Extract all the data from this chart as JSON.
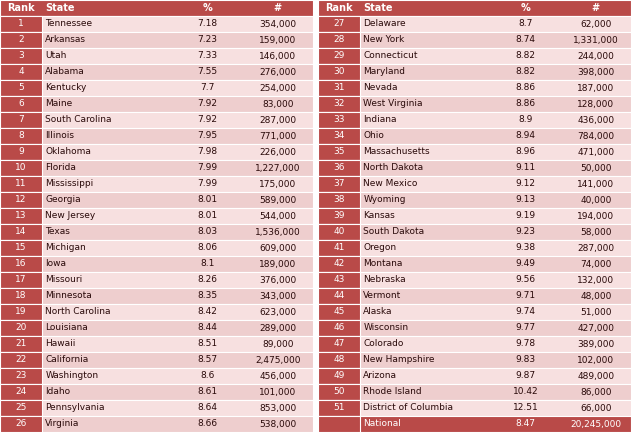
{
  "header": [
    "Rank",
    "State",
    "%",
    "#"
  ],
  "left_table": [
    [
      1,
      "Tennessee",
      "7.18",
      "354,000"
    ],
    [
      2,
      "Arkansas",
      "7.23",
      "159,000"
    ],
    [
      3,
      "Utah",
      "7.33",
      "146,000"
    ],
    [
      4,
      "Alabama",
      "7.55",
      "276,000"
    ],
    [
      5,
      "Kentucky",
      "7.7",
      "254,000"
    ],
    [
      6,
      "Maine",
      "7.92",
      "83,000"
    ],
    [
      7,
      "South Carolina",
      "7.92",
      "287,000"
    ],
    [
      8,
      "Illinois",
      "7.95",
      "771,000"
    ],
    [
      9,
      "Oklahoma",
      "7.98",
      "226,000"
    ],
    [
      10,
      "Florida",
      "7.99",
      "1,227,000"
    ],
    [
      11,
      "Mississippi",
      "7.99",
      "175,000"
    ],
    [
      12,
      "Georgia",
      "8.01",
      "589,000"
    ],
    [
      13,
      "New Jersey",
      "8.01",
      "544,000"
    ],
    [
      14,
      "Texas",
      "8.03",
      "1,536,000"
    ],
    [
      15,
      "Michigan",
      "8.06",
      "609,000"
    ],
    [
      16,
      "Iowa",
      "8.1",
      "189,000"
    ],
    [
      17,
      "Missouri",
      "8.26",
      "376,000"
    ],
    [
      18,
      "Minnesota",
      "8.35",
      "343,000"
    ],
    [
      19,
      "North Carolina",
      "8.42",
      "623,000"
    ],
    [
      20,
      "Louisiana",
      "8.44",
      "289,000"
    ],
    [
      21,
      "Hawaii",
      "8.51",
      "89,000"
    ],
    [
      22,
      "California",
      "8.57",
      "2,475,000"
    ],
    [
      23,
      "Washington",
      "8.6",
      "456,000"
    ],
    [
      24,
      "Idaho",
      "8.61",
      "101,000"
    ],
    [
      25,
      "Pennsylvania",
      "8.64",
      "853,000"
    ],
    [
      26,
      "Virginia",
      "8.66",
      "538,000"
    ]
  ],
  "right_table": [
    [
      27,
      "Delaware",
      "8.7",
      "62,000"
    ],
    [
      28,
      "New York",
      "8.74",
      "1,331,000"
    ],
    [
      29,
      "Connecticut",
      "8.82",
      "244,000"
    ],
    [
      30,
      "Maryland",
      "8.82",
      "398,000"
    ],
    [
      31,
      "Nevada",
      "8.86",
      "187,000"
    ],
    [
      32,
      "West Virginia",
      "8.86",
      "128,000"
    ],
    [
      33,
      "Indiana",
      "8.9",
      "436,000"
    ],
    [
      34,
      "Ohio",
      "8.94",
      "784,000"
    ],
    [
      35,
      "Massachusetts",
      "8.96",
      "471,000"
    ],
    [
      36,
      "North Dakota",
      "9.11",
      "50,000"
    ],
    [
      37,
      "New Mexico",
      "9.12",
      "141,000"
    ],
    [
      38,
      "Wyoming",
      "9.13",
      "40,000"
    ],
    [
      39,
      "Kansas",
      "9.19",
      "194,000"
    ],
    [
      40,
      "South Dakota",
      "9.23",
      "58,000"
    ],
    [
      41,
      "Oregon",
      "9.38",
      "287,000"
    ],
    [
      42,
      "Montana",
      "9.49",
      "74,000"
    ],
    [
      43,
      "Nebraska",
      "9.56",
      "132,000"
    ],
    [
      44,
      "Vermont",
      "9.71",
      "48,000"
    ],
    [
      45,
      "Alaska",
      "9.74",
      "51,000"
    ],
    [
      46,
      "Wisconsin",
      "9.77",
      "427,000"
    ],
    [
      47,
      "Colorado",
      "9.78",
      "389,000"
    ],
    [
      48,
      "New Hampshire",
      "9.83",
      "102,000"
    ],
    [
      49,
      "Arizona",
      "9.87",
      "489,000"
    ],
    [
      50,
      "Rhode Island",
      "10.42",
      "86,000"
    ],
    [
      51,
      "District of Columbia",
      "12.51",
      "66,000"
    ],
    [
      "",
      "National",
      "8.47",
      "20,245,000"
    ]
  ],
  "header_bg": "#b94a48",
  "header_text": "#ffffff",
  "rank_bg": "#b94a48",
  "rank_text": "#ffffff",
  "row_bg_light": "#f7e0e0",
  "row_bg_dark": "#eecece",
  "national_bg": "#b94a48",
  "national_text": "#ffffff",
  "body_text": "#2a0a0a",
  "gap_color": "#ffffff"
}
